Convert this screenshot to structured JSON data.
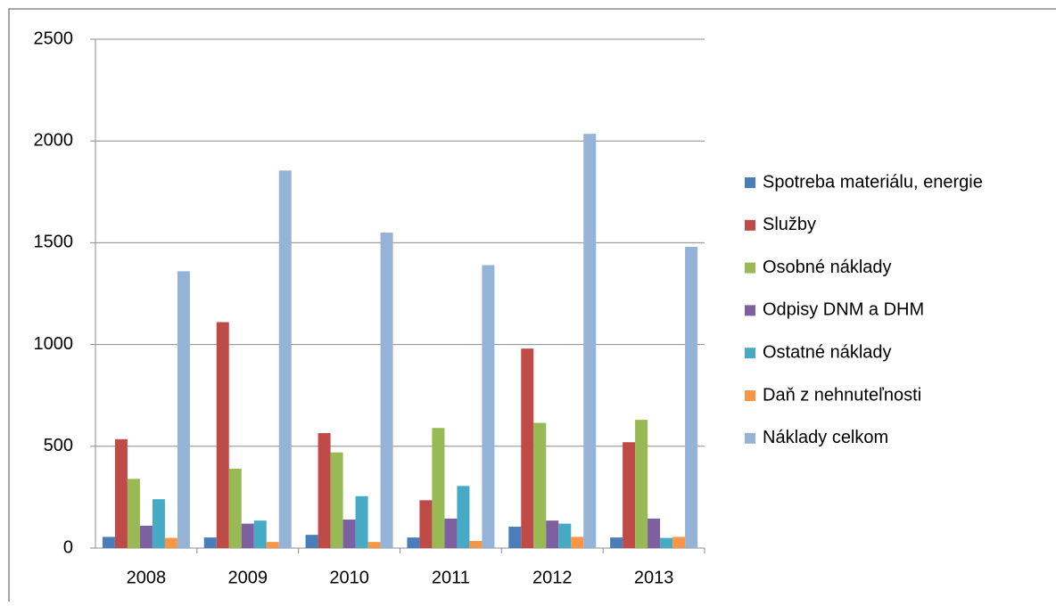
{
  "chart_data": {
    "type": "bar",
    "categories": [
      "2008",
      "2009",
      "2010",
      "2011",
      "2012",
      "2013"
    ],
    "series": [
      {
        "name": "Spotreba materiálu, energie",
        "color": "#4a7ebb",
        "values": [
          55,
          52,
          65,
          52,
          105,
          52
        ]
      },
      {
        "name": "Služby",
        "color": "#be4b48",
        "values": [
          535,
          1110,
          565,
          235,
          980,
          520
        ]
      },
      {
        "name": "Osobné náklady",
        "color": "#98b954",
        "values": [
          340,
          390,
          470,
          590,
          615,
          630
        ]
      },
      {
        "name": "Odpisy DNM a DHM",
        "color": "#7d60a0",
        "values": [
          110,
          120,
          140,
          145,
          135,
          145
        ]
      },
      {
        "name": "Ostatné náklady",
        "color": "#46aac5",
        "values": [
          240,
          135,
          255,
          305,
          120,
          50
        ]
      },
      {
        "name": "Daň z nehnuteľnosti",
        "color": "#f79646",
        "values": [
          50,
          30,
          30,
          35,
          55,
          55
        ]
      },
      {
        "name": "Náklady celkom",
        "color": "#95b3d7",
        "values": [
          1360,
          1855,
          1550,
          1390,
          2035,
          1480
        ]
      }
    ],
    "ylim": [
      0,
      2500
    ],
    "yticks": [
      0,
      500,
      1000,
      1500,
      2000,
      2500
    ],
    "grid": true,
    "legend": "right"
  }
}
